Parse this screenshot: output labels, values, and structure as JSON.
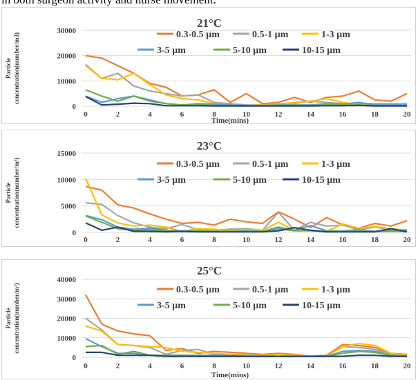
{
  "page": {
    "top_text": "in both surgeon activity and nurse movement."
  },
  "legend_colors": {
    "0.3-0.5 µm": "#ed7d31",
    "0.5-1 µm": "#a5a5a5",
    "1-3 µm": "#ffc000",
    "3-5 µm": "#5b9bd5",
    "5-10 µm": "#70ad47",
    "10-15 µm": "#264478"
  },
  "chart_data": [
    {
      "type": "line",
      "title": "21°C",
      "xlabel": "Time(mins)",
      "ylabel_line1": "Particle",
      "ylabel_line2": "concentration(number/m3)",
      "ylim": [
        0,
        30000
      ],
      "yticks": [
        "0",
        "10000",
        "20000",
        "30000"
      ],
      "xticks": [
        "0",
        "2",
        "4",
        "6",
        "8",
        "10",
        "12",
        "14",
        "16",
        "18",
        "20"
      ],
      "x": [
        0,
        1,
        2,
        3,
        4,
        5,
        6,
        7,
        8,
        9,
        10,
        11,
        12,
        13,
        14,
        15,
        16,
        17,
        18,
        19,
        20
      ],
      "series": [
        {
          "name": "0.3-0.5 µm",
          "values": [
            20000,
            19000,
            16000,
            13000,
            9000,
            7500,
            4000,
            4500,
            6500,
            1500,
            5000,
            1000,
            1500,
            3500,
            1500,
            3500,
            4000,
            6000,
            2500,
            2000,
            5000
          ]
        },
        {
          "name": "0.5-1 µm",
          "values": [
            16500,
            11000,
            13000,
            8000,
            6000,
            5000,
            4000,
            4500,
            1500,
            1000,
            500,
            500,
            1000,
            1000,
            2000,
            1500,
            1000,
            1000,
            1000,
            1000,
            1000
          ]
        },
        {
          "name": "1-3 µm",
          "values": [
            16000,
            11000,
            10500,
            13000,
            8500,
            4500,
            3000,
            2500,
            1000,
            500,
            300,
            500,
            800,
            1500,
            2000,
            3000,
            1500,
            500,
            300,
            300,
            300
          ]
        },
        {
          "name": "3-5 µm",
          "values": [
            4000,
            1500,
            3000,
            4000,
            2500,
            1000,
            500,
            1000,
            800,
            500,
            300,
            300,
            500,
            500,
            500,
            1000,
            800,
            1500,
            500,
            500,
            500
          ]
        },
        {
          "name": "5-10 µm",
          "values": [
            6500,
            4000,
            2000,
            4000,
            2000,
            1000,
            500,
            500,
            300,
            300,
            200,
            200,
            300,
            300,
            300,
            500,
            500,
            500,
            300,
            200,
            200
          ]
        },
        {
          "name": "10-15 µm",
          "values": [
            3800,
            500,
            800,
            1200,
            1000,
            200,
            200,
            200,
            100,
            100,
            100,
            100,
            100,
            100,
            100,
            200,
            200,
            300,
            100,
            100,
            100
          ]
        }
      ]
    },
    {
      "type": "line",
      "title": "23°C",
      "xlabel": "Time(mins)",
      "ylabel_line1": "Particle",
      "ylabel_line2": "concentration(number/m³)",
      "ylim": [
        0,
        15000
      ],
      "yticks": [
        "0",
        "5000",
        "10000",
        "15000"
      ],
      "xticks": [
        "0",
        "2",
        "4",
        "6",
        "8",
        "10",
        "12",
        "14",
        "16",
        "18",
        "20"
      ],
      "x": [
        0,
        1,
        2,
        3,
        4,
        5,
        6,
        7,
        8,
        9,
        10,
        11,
        12,
        13,
        14,
        15,
        16,
        17,
        18,
        19,
        20
      ],
      "series": [
        {
          "name": "0.3-0.5 µm",
          "values": [
            8700,
            8000,
            5200,
            4600,
            3500,
            2500,
            1700,
            1900,
            1400,
            2500,
            2000,
            1700,
            3900,
            2500,
            900,
            2800,
            1400,
            800,
            1700,
            1200,
            2200
          ]
        },
        {
          "name": "0.5-1 µm",
          "values": [
            5600,
            5300,
            3200,
            1800,
            1000,
            700,
            1500,
            500,
            400,
            600,
            700,
            400,
            3800,
            400,
            1900,
            1200,
            1400,
            500,
            1000,
            500,
            500
          ]
        },
        {
          "name": "1-3 µm",
          "values": [
            10200,
            3300,
            1800,
            1200,
            1400,
            1000,
            200,
            700,
            600,
            300,
            500,
            400,
            1900,
            400,
            400,
            200,
            1600,
            800,
            1100,
            700,
            400
          ]
        },
        {
          "name": "3-5 µm",
          "values": [
            3200,
            2400,
            1000,
            600,
            800,
            400,
            300,
            300,
            200,
            200,
            300,
            200,
            1000,
            400,
            1300,
            300,
            300,
            500,
            200,
            300,
            400
          ]
        },
        {
          "name": "5-10 µm",
          "values": [
            3100,
            1900,
            700,
            400,
            500,
            300,
            200,
            300,
            200,
            200,
            200,
            200,
            700,
            300,
            300,
            200,
            200,
            200,
            200,
            200,
            200
          ]
        },
        {
          "name": "10-15 µm",
          "values": [
            1800,
            400,
            1000,
            200,
            200,
            100,
            200,
            100,
            100,
            100,
            100,
            100,
            300,
            900,
            400,
            100,
            100,
            100,
            100,
            700,
            100
          ]
        }
      ]
    },
    {
      "type": "line",
      "title": "25°C",
      "xlabel": "Time(mins)",
      "ylabel_line1": "Particle",
      "ylabel_line2": "concentration(number/m³)",
      "ylim": [
        0,
        40000
      ],
      "yticks": [
        "0",
        "10000",
        "20000",
        "30000",
        "40000"
      ],
      "xticks": [
        "0",
        "2",
        "4",
        "6",
        "8",
        "10",
        "12",
        "14",
        "16",
        "18",
        "20"
      ],
      "x": [
        0,
        1,
        2,
        3,
        4,
        5,
        6,
        7,
        8,
        9,
        10,
        11,
        12,
        13,
        14,
        15,
        16,
        17,
        18,
        19,
        20
      ],
      "series": [
        {
          "name": "0.3-0.5 µm",
          "values": [
            32000,
            17000,
            13500,
            12000,
            11000,
            3500,
            4500,
            2000,
            3000,
            2500,
            2000,
            1500,
            2000,
            1500,
            500,
            1000,
            6500,
            6000,
            5000,
            2000,
            1500
          ]
        },
        {
          "name": "0.5-1 µm",
          "values": [
            20000,
            14000,
            6500,
            6000,
            5000,
            1500,
            3500,
            4000,
            1500,
            1500,
            1500,
            1000,
            1500,
            1000,
            500,
            500,
            5500,
            5000,
            4000,
            1500,
            1000
          ]
        },
        {
          "name": "1-3 µm",
          "values": [
            16000,
            13500,
            6500,
            6000,
            5500,
            5000,
            3000,
            2500,
            2000,
            1500,
            1000,
            1000,
            1500,
            1000,
            500,
            500,
            5500,
            7000,
            6000,
            2000,
            1000
          ]
        },
        {
          "name": "3-5 µm",
          "values": [
            9500,
            5500,
            2000,
            2000,
            1000,
            1000,
            1000,
            1000,
            1000,
            1000,
            500,
            500,
            500,
            500,
            500,
            500,
            3000,
            3500,
            3000,
            1000,
            500
          ]
        },
        {
          "name": "5-10 µm",
          "values": [
            5500,
            6000,
            1500,
            3000,
            1000,
            1000,
            1000,
            500,
            500,
            500,
            500,
            500,
            500,
            500,
            500,
            500,
            2000,
            3000,
            2500,
            1000,
            500
          ]
        },
        {
          "name": "10-15 µm",
          "values": [
            2500,
            2500,
            1000,
            1000,
            1000,
            500,
            500,
            500,
            500,
            500,
            500,
            500,
            500,
            500,
            500,
            500,
            500,
            1000,
            1000,
            500,
            500
          ]
        }
      ]
    }
  ]
}
